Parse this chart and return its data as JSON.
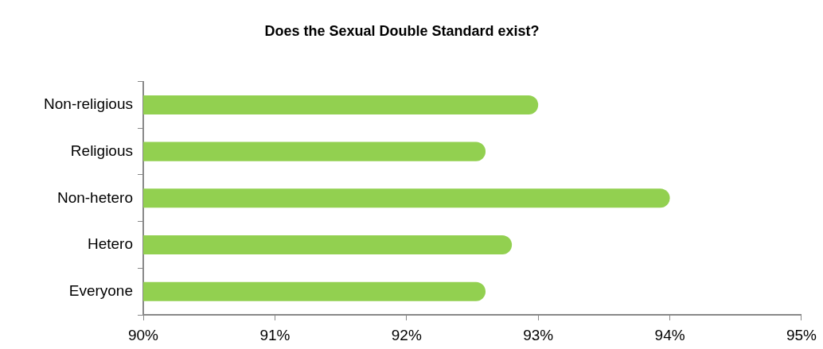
{
  "chart_data": {
    "type": "bar",
    "title": "Does the Sexual Double Standard exist?",
    "orientation": "horizontal",
    "categories": [
      "Non-religious",
      "Religious",
      "Non-hetero",
      "Hetero",
      "Everyone"
    ],
    "values": [
      93.0,
      92.6,
      94.0,
      92.8,
      92.6
    ],
    "color": "#92d050",
    "xlim": [
      90,
      95
    ],
    "xticks": [
      {
        "value": 90,
        "label": "90%"
      },
      {
        "value": 91,
        "label": "91%"
      },
      {
        "value": 92,
        "label": "92%"
      },
      {
        "value": 93,
        "label": "93%"
      },
      {
        "value": 94,
        "label": "94%"
      },
      {
        "value": 95,
        "label": "95%"
      }
    ],
    "legend": false
  }
}
